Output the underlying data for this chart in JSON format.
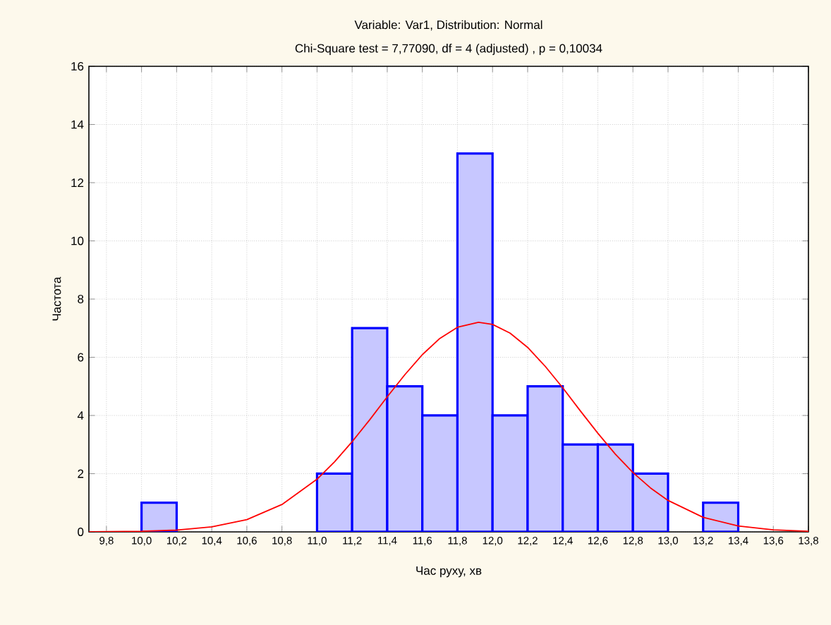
{
  "chart_data": {
    "type": "histogram",
    "title": "Variable: Var1, Distribution: Normal",
    "subtitle": "Chi-Square test = 7,77090, df = 4 (adjusted) , p = 0,10034",
    "xlabel": "Час руху, хв",
    "ylabel": "Частота",
    "color": "#0000ff",
    "bins": [
      10.0,
      10.2,
      10.4,
      10.6,
      10.8,
      11.0,
      11.2,
      11.4,
      11.6,
      11.8,
      12.0,
      12.2,
      12.4,
      12.6,
      12.8,
      13.0,
      13.2,
      13.4
    ],
    "values": [
      1,
      0,
      0,
      0,
      0,
      2,
      7,
      5,
      4,
      13,
      4,
      5,
      3,
      3,
      2,
      0,
      1
    ],
    "series": [
      {
        "type": "line",
        "color": "#ff0000",
        "x": [
          9.7,
          10.0,
          10.2,
          10.4,
          10.6,
          10.8,
          11.0,
          11.1,
          11.2,
          11.3,
          11.4,
          11.5,
          11.6,
          11.7,
          11.8,
          11.92,
          12.0,
          12.1,
          12.2,
          12.3,
          12.4,
          12.5,
          12.6,
          12.7,
          12.8,
          12.9,
          13.0,
          13.2,
          13.4,
          13.6,
          13.8
        ],
        "values": [
          0.0,
          0.02,
          0.06,
          0.17,
          0.42,
          0.94,
          1.81,
          2.41,
          3.1,
          3.85,
          4.64,
          5.4,
          6.09,
          6.65,
          7.03,
          7.2,
          7.13,
          6.83,
          6.34,
          5.69,
          4.95,
          4.16,
          3.39,
          2.67,
          2.04,
          1.51,
          1.08,
          0.5,
          0.2,
          0.07,
          0.02
        ]
      }
    ],
    "xlim": [
      9.7,
      13.8
    ],
    "ylim": [
      0,
      16
    ],
    "xticks": [
      {
        "value": 9.8,
        "label": "9,8"
      },
      {
        "value": 10.0,
        "label": "10,0"
      },
      {
        "value": 10.2,
        "label": "10,2"
      },
      {
        "value": 10.4,
        "label": "10,4"
      },
      {
        "value": 10.6,
        "label": "10,6"
      },
      {
        "value": 10.8,
        "label": "10,8"
      },
      {
        "value": 11.0,
        "label": "11,0"
      },
      {
        "value": 11.2,
        "label": "11,2"
      },
      {
        "value": 11.4,
        "label": "11,4"
      },
      {
        "value": 11.6,
        "label": "11,6"
      },
      {
        "value": 11.8,
        "label": "11,8"
      },
      {
        "value": 12.0,
        "label": "12,0"
      },
      {
        "value": 12.2,
        "label": "12,2"
      },
      {
        "value": 12.4,
        "label": "12,4"
      },
      {
        "value": 12.6,
        "label": "12,6"
      },
      {
        "value": 12.8,
        "label": "12,8"
      },
      {
        "value": 13.0,
        "label": "13,0"
      },
      {
        "value": 13.2,
        "label": "13,2"
      },
      {
        "value": 13.4,
        "label": "13,4"
      },
      {
        "value": 13.6,
        "label": "13,6"
      },
      {
        "value": 13.8,
        "label": "13,8"
      }
    ],
    "yticks": [
      0,
      2,
      4,
      6,
      8,
      10,
      12,
      14,
      16
    ],
    "grid": true
  }
}
